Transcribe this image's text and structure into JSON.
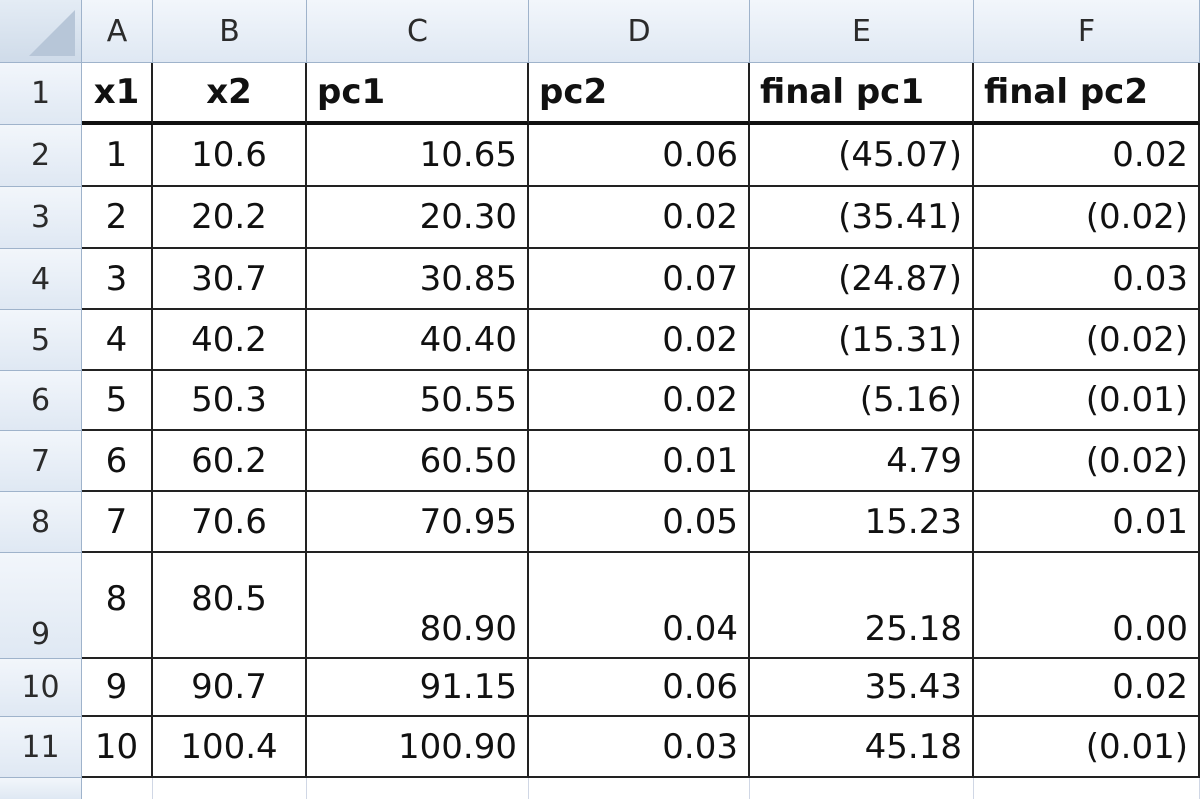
{
  "columns": [
    "A",
    "B",
    "C",
    "D",
    "E",
    "F"
  ],
  "rows": [
    {
      "num": "1",
      "cells": [
        "x1",
        "x2",
        "pc1",
        "pc2",
        "final pc1",
        "final pc2"
      ]
    },
    {
      "num": "2",
      "cells": [
        "1",
        "10.6",
        "10.65",
        "0.06",
        "(45.07)",
        "0.02"
      ]
    },
    {
      "num": "3",
      "cells": [
        "2",
        "20.2",
        "20.30",
        "0.02",
        "(35.41)",
        "(0.02)"
      ]
    },
    {
      "num": "4",
      "cells": [
        "3",
        "30.7",
        "30.85",
        "0.07",
        "(24.87)",
        "0.03"
      ]
    },
    {
      "num": "5",
      "cells": [
        "4",
        "40.2",
        "40.40",
        "0.02",
        "(15.31)",
        "(0.02)"
      ]
    },
    {
      "num": "6",
      "cells": [
        "5",
        "50.3",
        "50.55",
        "0.02",
        "(5.16)",
        "(0.01)"
      ]
    },
    {
      "num": "7",
      "cells": [
        "6",
        "60.2",
        "60.50",
        "0.01",
        "4.79",
        "(0.02)"
      ]
    },
    {
      "num": "8",
      "cells": [
        "7",
        "70.6",
        "70.95",
        "0.05",
        "15.23",
        "0.01"
      ]
    },
    {
      "num": "9",
      "cells": [
        "8",
        "80.5",
        "80.90",
        "0.04",
        "25.18",
        "0.00"
      ]
    },
    {
      "num": "10",
      "cells": [
        "9",
        "90.7",
        "91.15",
        "0.06",
        "35.43",
        "0.02"
      ]
    },
    {
      "num": "11",
      "cells": [
        "10",
        "100.4",
        "100.90",
        "0.03",
        "45.18",
        "(0.01)"
      ]
    }
  ]
}
